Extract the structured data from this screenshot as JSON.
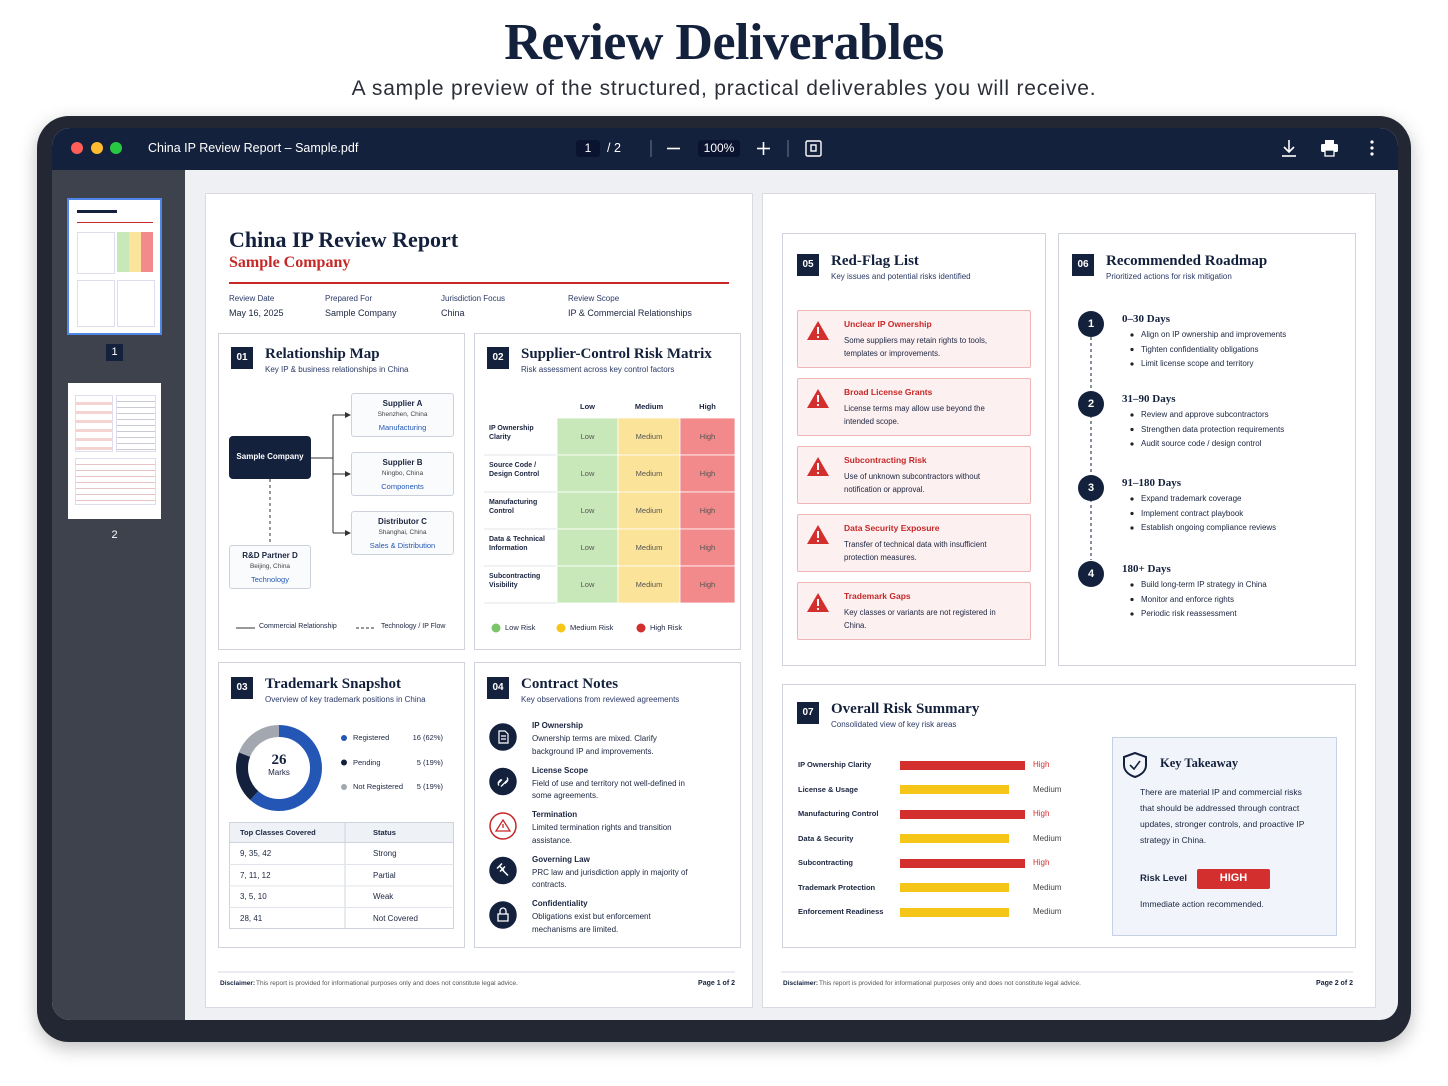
{
  "header": {
    "title": "Review Deliverables",
    "subtitle": "A sample preview of the structured, practical deliverables you will receive."
  },
  "viewer": {
    "file_name": "China IP Review Report – Sample.pdf",
    "page_input": "1",
    "page_count": "/ 2",
    "zoom": "100%",
    "thumbnails": [
      "1",
      "2"
    ]
  },
  "page1": {
    "title": "China IP Review Report",
    "company": "Sample Company",
    "meta": [
      {
        "label": "Review Date",
        "value": "May 16, 2025"
      },
      {
        "label": "Prepared For",
        "value": "Sample Company"
      },
      {
        "label": "Jurisdiction Focus",
        "value": "China"
      },
      {
        "label": "Review Scope",
        "value": "IP & Commercial Relationships"
      }
    ],
    "relationship_map": {
      "number": "01",
      "title": "Relationship Map",
      "subtitle": "Key IP & business relationships in China",
      "center": "Sample Company",
      "nodes": [
        {
          "name": "Supplier A",
          "location": "Shenzhen, China",
          "role": "Manufacturing"
        },
        {
          "name": "Supplier B",
          "location": "Ningbo, China",
          "role": "Components"
        },
        {
          "name": "Distributor C",
          "location": "Shanghai, China",
          "role": "Sales & Distribution"
        },
        {
          "name": "R&D Partner D",
          "location": "Beijing, China",
          "role": "Technology"
        }
      ],
      "legend": [
        "Commercial Relationship",
        "Technology / IP Flow"
      ]
    },
    "risk_matrix": {
      "number": "02",
      "title": "Supplier-Control Risk Matrix",
      "subtitle": "Risk assessment across key control factors",
      "columns": [
        {
          "name": "Low",
          "color": "#c9e8b9"
        },
        {
          "name": "Medium",
          "color": "#fbe39a"
        },
        {
          "name": "High",
          "color": "#f2898a"
        }
      ],
      "rows": [
        {
          "label": "IP Ownership Clarity",
          "cells": [
            "Low",
            "Medium",
            "High"
          ]
        },
        {
          "label": "Source Code / Design Control",
          "cells": [
            "Low",
            "Medium",
            "High"
          ]
        },
        {
          "label": "Manufacturing Control",
          "cells": [
            "Low",
            "Medium",
            "High"
          ]
        },
        {
          "label": "Data & Technical Information",
          "cells": [
            "Low",
            "Medium",
            "High"
          ]
        },
        {
          "label": "Subcontracting Visibility",
          "cells": [
            "Low",
            "Medium",
            "High"
          ]
        }
      ],
      "legend": [
        {
          "label": "Low Risk",
          "color": "#7cc46a"
        },
        {
          "label": "Medium Risk",
          "color": "#f5c518"
        },
        {
          "label": "High Risk",
          "color": "#d32f2f"
        }
      ]
    },
    "trademarks": {
      "number": "03",
      "title": "Trademark Snapshot",
      "subtitle": "Overview of key trademark positions in China",
      "total": 26,
      "total_label": "Marks",
      "series": [
        {
          "name": "Registered",
          "value": 16,
          "value_label": "16 (62%)",
          "color": "#2457b5"
        },
        {
          "name": "Pending",
          "value": 5,
          "value_label": "5 (19%)",
          "color": "#14213d"
        },
        {
          "name": "Not Registered",
          "value": 5,
          "value_label": "5 (19%)",
          "color": "#a3a8b0"
        }
      ],
      "table": {
        "header": [
          "Top Classes Covered",
          "Status"
        ],
        "rows": [
          [
            "9, 35, 42",
            "Strong"
          ],
          [
            "7, 11, 12",
            "Partial"
          ],
          [
            "3, 5, 10",
            "Weak"
          ],
          [
            "28, 41",
            "Not Covered"
          ]
        ]
      }
    },
    "contract_notes": {
      "number": "04",
      "title": "Contract Notes",
      "subtitle": "Key observations from reviewed agreements",
      "items": [
        {
          "title": "IP Ownership",
          "text": "Ownership terms are mixed. Clarify background IP and improvements."
        },
        {
          "title": "License Scope",
          "text": "Field of use and territory not well-defined in some agreements."
        },
        {
          "title": "Termination",
          "text": "Limited termination rights and transition assistance."
        },
        {
          "title": "Governing Law",
          "text": "PRC law and jurisdiction apply in majority of contracts."
        },
        {
          "title": "Confidentiality",
          "text": "Obligations exist but enforcement mechanisms are limited."
        }
      ]
    },
    "footer": {
      "disclaimer_label": "Disclaimer:",
      "disclaimer": "This report is provided for informational purposes only and does not constitute legal advice.",
      "page": "Page 1 of 2"
    }
  },
  "page2": {
    "red_flags": {
      "number": "05",
      "title": "Red-Flag List",
      "subtitle": "Key issues and potential risks identified",
      "items": [
        {
          "title": "Unclear IP Ownership",
          "text": "Some suppliers may retain rights to tools, templates or improvements."
        },
        {
          "title": "Broad License Grants",
          "text": "License terms may allow use beyond the intended scope."
        },
        {
          "title": "Subcontracting Risk",
          "text": "Use of unknown subcontractors without notification or approval."
        },
        {
          "title": "Data Security Exposure",
          "text": "Transfer of technical data with insufficient protection measures."
        },
        {
          "title": "Trademark Gaps",
          "text": "Key classes or variants are not registered in China."
        }
      ]
    },
    "roadmap": {
      "number": "06",
      "title": "Recommended Roadmap",
      "subtitle": "Prioritized actions for risk mitigation",
      "steps": [
        {
          "number": 1,
          "period": "0–30 Days",
          "actions": [
            "Align on IP ownership and improvements",
            "Tighten confidentiality obligations",
            "Limit license scope and territory"
          ]
        },
        {
          "number": 2,
          "period": "31–90 Days",
          "actions": [
            "Review and approve subcontractors",
            "Strengthen data protection requirements",
            "Audit source code / design control"
          ]
        },
        {
          "number": 3,
          "period": "91–180 Days",
          "actions": [
            "Expand trademark coverage",
            "Implement contract playbook",
            "Establish ongoing compliance reviews"
          ]
        },
        {
          "number": 4,
          "period": "180+ Days",
          "actions": [
            "Build long-term IP strategy in China",
            "Monitor and enforce rights",
            "Periodic risk reassessment"
          ]
        }
      ]
    },
    "risk_summary": {
      "number": "07",
      "title": "Overall Risk Summary",
      "subtitle": "Consolidated view of key risk areas",
      "items": [
        {
          "label": "IP Ownership Clarity",
          "level": "High",
          "color": "#d32f2f"
        },
        {
          "label": "License & Usage",
          "level": "Medium",
          "color": "#f5c518"
        },
        {
          "label": "Manufacturing Control",
          "level": "High",
          "color": "#d32f2f"
        },
        {
          "label": "Data & Security",
          "level": "Medium",
          "color": "#f5c518"
        },
        {
          "label": "Subcontracting",
          "level": "High",
          "color": "#d32f2f"
        },
        {
          "label": "Trademark Protection",
          "level": "Medium",
          "color": "#f5c518"
        },
        {
          "label": "Enforcement Readiness",
          "level": "Medium",
          "color": "#f5c518"
        }
      ],
      "takeaway": {
        "title": "Key Takeaway",
        "text": "There are material IP and commercial risks that should be addressed through contract updates, stronger controls, and proactive IP strategy in China.",
        "risk_label": "Risk Level",
        "risk_value": "HIGH",
        "note": "Immediate action recommended."
      }
    },
    "footer": {
      "disclaimer_label": "Disclaimer:",
      "disclaimer": "This report is provided for informational purposes only and does not constitute legal advice.",
      "page": "Page 2 of 2"
    }
  }
}
